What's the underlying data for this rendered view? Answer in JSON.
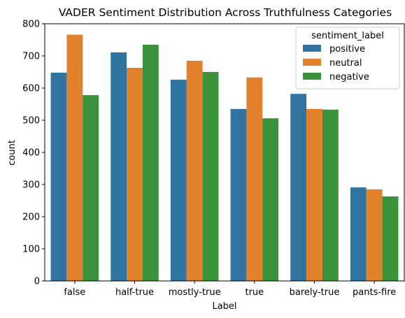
{
  "chart_data": {
    "type": "bar",
    "title": "VADER Sentiment Distribution Across Truthfulness Categories",
    "xlabel": "Label",
    "ylabel": "count",
    "categories": [
      "false",
      "half-true",
      "mostly-true",
      "true",
      "barely-true",
      "pants-fire"
    ],
    "ylim": [
      0,
      800
    ],
    "yticks": [
      0,
      100,
      200,
      300,
      400,
      500,
      600,
      700,
      800
    ],
    "grid": false,
    "legend": {
      "title": "sentiment_label",
      "placement": "top-right"
    },
    "series": [
      {
        "name": "positive",
        "color": "#3274a1",
        "values": [
          648,
          711,
          626,
          535,
          582,
          291
        ]
      },
      {
        "name": "neutral",
        "color": "#e1812c",
        "values": [
          766,
          663,
          685,
          633,
          535,
          285
        ]
      },
      {
        "name": "negative",
        "color": "#3a923a",
        "values": [
          578,
          735,
          650,
          506,
          533,
          263
        ]
      }
    ]
  }
}
